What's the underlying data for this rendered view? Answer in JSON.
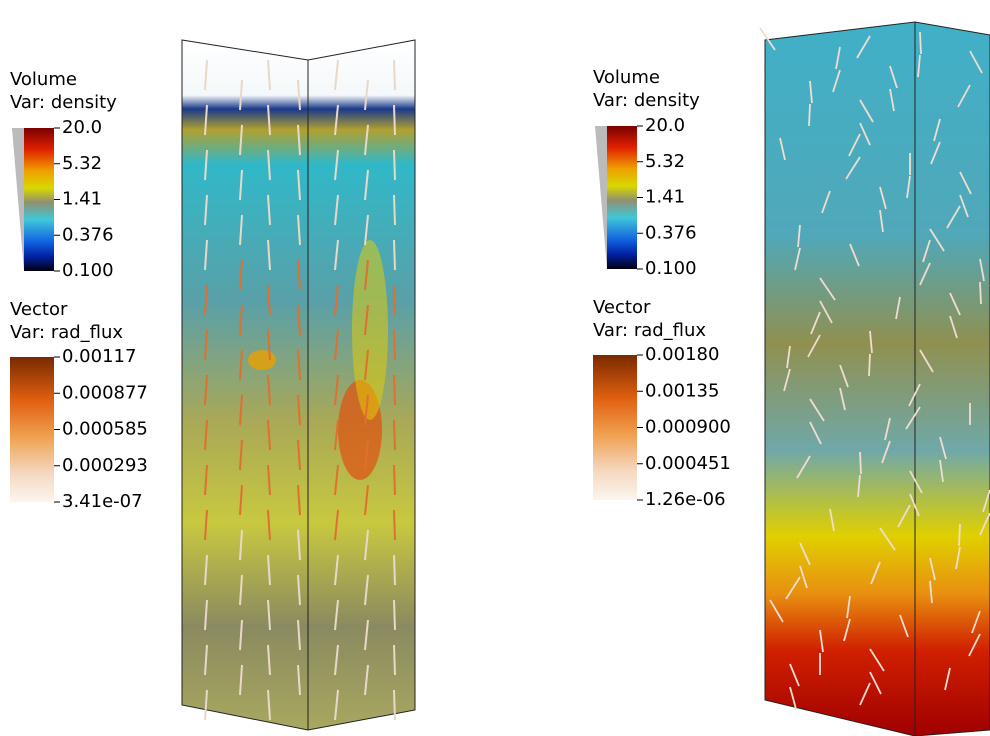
{
  "panels": [
    {
      "volume_legend": {
        "title": "Volume",
        "variable": "Var: density",
        "labels": [
          "20.0",
          "5.32",
          "1.41",
          "0.376",
          "0.100"
        ]
      },
      "vector_legend": {
        "title": "Vector",
        "variable": "Var: rad_flux",
        "labels": [
          "0.00117",
          "0.000877",
          "0.000585",
          "0.000293",
          "3.41e-07"
        ]
      }
    },
    {
      "volume_legend": {
        "title": "Volume",
        "variable": "Var: density",
        "labels": [
          "20.0",
          "5.32",
          "1.41",
          "0.376",
          "0.100"
        ]
      },
      "vector_legend": {
        "title": "Vector",
        "variable": "Var: rad_flux",
        "labels": [
          "0.00180",
          "0.00135",
          "0.000900",
          "0.000451",
          "1.26e-06"
        ]
      }
    }
  ]
}
